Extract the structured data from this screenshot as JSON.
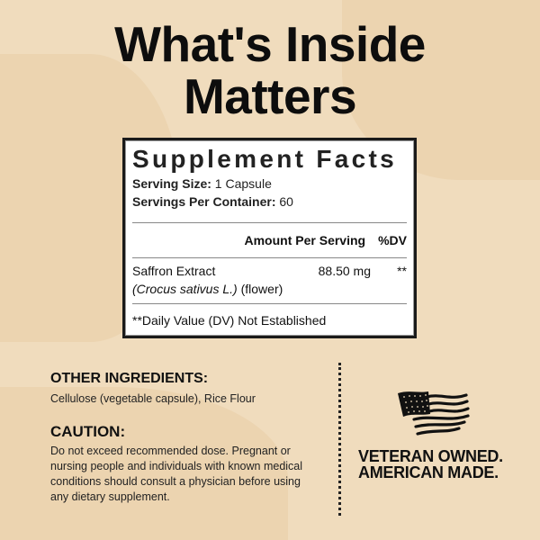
{
  "title": {
    "line1": "What's Inside",
    "line2": "Matters"
  },
  "facts": {
    "heading": "Supplement Facts",
    "serving_size_label": "Serving Size:",
    "serving_size_value": " 1 Capsule",
    "servings_label": "Servings Per Container:",
    "servings_value": " 60",
    "col_amount": "Amount Per Serving",
    "col_dv": "%DV",
    "ingredient_name": "Saffron Extract",
    "ingredient_latin": "(Crocus sativus L.)",
    "ingredient_part": " (flower)",
    "ingredient_amount": "88.50 mg",
    "ingredient_dv": "**",
    "footnote": "**Daily Value (DV) Not Established"
  },
  "other": {
    "heading": "OTHER INGREDIENTS:",
    "text": "Cellulose (vegetable capsule), Rice Flour"
  },
  "caution": {
    "heading": "CAUTION:",
    "text": "Do not exceed recommended dose. Pregnant or nursing people and individuals with known medical conditions should consult a physician before using any dietary supplement."
  },
  "badge": {
    "icon": "american-flag-icon",
    "line1": "VETERAN OWNED.",
    "line2": "AMERICAN MADE."
  }
}
